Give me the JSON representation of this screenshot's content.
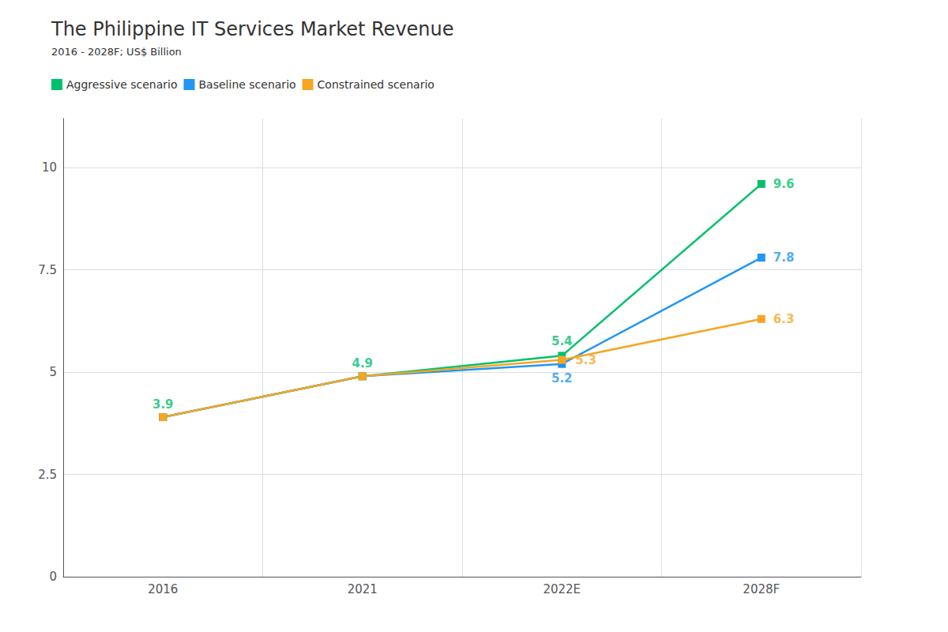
{
  "chart_data": {
    "type": "line",
    "title": "The Philippine IT Services Market Revenue",
    "subtitle": "2016 - 2028F; US$ Billion",
    "categories": [
      "2016",
      "2021",
      "2022E",
      "2028F"
    ],
    "series": [
      {
        "name": "Aggressive scenario",
        "color": "#00C06E",
        "values": [
          3.9,
          4.9,
          5.4,
          9.6
        ]
      },
      {
        "name": "Baseline scenario",
        "color": "#2196F3",
        "values": [
          3.9,
          4.9,
          5.2,
          7.8
        ]
      },
      {
        "name": "Constrained scenario",
        "color": "#F5A623",
        "values": [
          3.9,
          4.9,
          5.3,
          6.3
        ]
      }
    ],
    "annotations": [
      {
        "text": "3.9",
        "x": "2016",
        "y": 3.9,
        "color": "#00C06E"
      },
      {
        "text": "4.9",
        "x": "2021",
        "y": 4.9,
        "color": "#00C06E"
      },
      {
        "text": "5.4",
        "x": "2022E",
        "y": 5.4,
        "color": "#00C06E"
      },
      {
        "text": "9.6",
        "x": "2028F",
        "y": 9.6,
        "color": "#00C06E"
      },
      {
        "text": "5.2",
        "x": "2022E",
        "y": 5.2,
        "color": "#2196F3"
      },
      {
        "text": "7.8",
        "x": "2028F",
        "y": 7.8,
        "color": "#2196F3"
      },
      {
        "text": "5.3",
        "x": "2022E",
        "y": 5.3,
        "color": "#F5A623"
      },
      {
        "text": "6.3",
        "x": "2028F",
        "y": 6.3,
        "color": "#F5A623"
      }
    ],
    "ylim": [
      0,
      11.2
    ],
    "yticks": [
      0,
      2.5,
      5,
      7.5,
      10
    ],
    "grid": true,
    "legend": "upper left",
    "marker": "square"
  }
}
